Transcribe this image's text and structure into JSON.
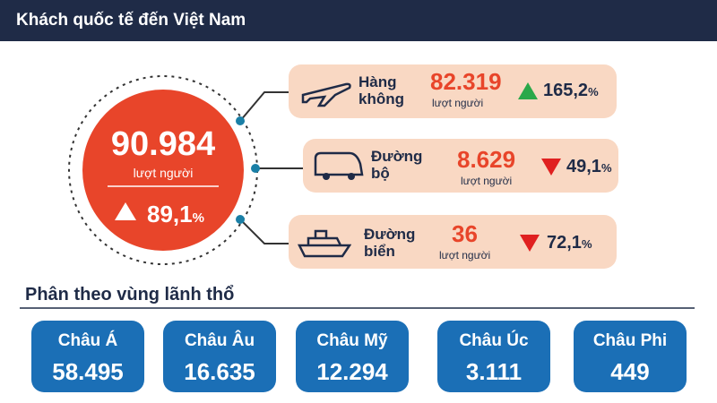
{
  "header": {
    "title": "Khách quốc tế đến Việt Nam"
  },
  "total": {
    "value": "90.984",
    "unit": "lượt người",
    "change": "89,1",
    "percent": "%"
  },
  "modes": [
    {
      "label": "Hàng không",
      "value": "82.319",
      "unit": "lượt người",
      "change": "165,2",
      "percent": "%"
    },
    {
      "label": "Đường bộ",
      "value": "8.629",
      "unit": "lượt người",
      "change": "49,1",
      "percent": "%"
    },
    {
      "label": "Đường biển",
      "value": "36",
      "unit": "lượt người",
      "change": "72,1",
      "percent": "%"
    }
  ],
  "regions": {
    "title": "Phân theo vùng lãnh thổ",
    "items": [
      {
        "name": "Châu Á",
        "value": "58.495"
      },
      {
        "name": "Châu Âu",
        "value": "16.635"
      },
      {
        "name": "Châu Mỹ",
        "value": "12.294"
      },
      {
        "name": "Châu Úc",
        "value": "3.111"
      },
      {
        "name": "Châu Phi",
        "value": "449"
      }
    ]
  }
}
